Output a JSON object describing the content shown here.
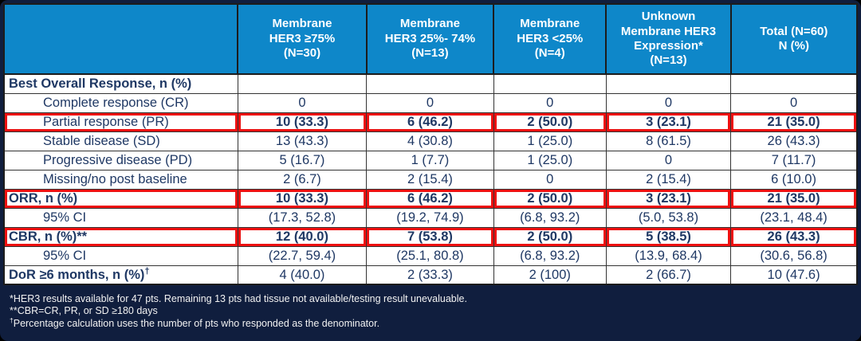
{
  "colors": {
    "bg_navy": "#101E3E",
    "header_blue": "#0E87C9",
    "text_navy": "#1F3864",
    "highlight_red": "#EE1111",
    "border_dark": "#1c1c1c"
  },
  "table": {
    "columns": [
      {
        "name": "column-header-row-label",
        "label": ""
      },
      {
        "name": "column-header-her3-ge75",
        "label": "Membrane\nHER3 ≥75%\n(N=30)"
      },
      {
        "name": "column-header-her3-25-74",
        "label": "Membrane\nHER3 25%- 74%\n(N=13)"
      },
      {
        "name": "column-header-her3-lt25",
        "label": "Membrane\nHER3 <25%\n(N=4)"
      },
      {
        "name": "column-header-unknown",
        "label": "Unknown\nMembrane HER3\nExpression*\n(N=13)"
      },
      {
        "name": "column-header-total",
        "label": "Total (N=60)\nN (%)"
      }
    ],
    "rows": [
      {
        "label": "Best Overall Response, n (%)",
        "label_sup": "",
        "indent": false,
        "bold_label": true,
        "bold_values": false,
        "highlight": false,
        "values": [
          "",
          "",
          "",
          "",
          ""
        ]
      },
      {
        "label": "Complete response (CR)",
        "label_sup": "",
        "indent": true,
        "bold_label": false,
        "bold_values": false,
        "highlight": false,
        "values": [
          "0",
          "0",
          "0",
          "0",
          "0"
        ]
      },
      {
        "label": "Partial response (PR)",
        "label_sup": "",
        "indent": true,
        "bold_label": false,
        "bold_values": true,
        "highlight": true,
        "values": [
          "10 (33.3)",
          "6 (46.2)",
          "2 (50.0)",
          "3 (23.1)",
          "21 (35.0)"
        ]
      },
      {
        "label": "Stable disease (SD)",
        "label_sup": "",
        "indent": true,
        "bold_label": false,
        "bold_values": false,
        "highlight": false,
        "values": [
          "13 (43.3)",
          "4 (30.8)",
          "1 (25.0)",
          "8 (61.5)",
          "26 (43.3)"
        ]
      },
      {
        "label": "Progressive disease (PD)",
        "label_sup": "",
        "indent": true,
        "bold_label": false,
        "bold_values": false,
        "highlight": false,
        "values": [
          "5 (16.7)",
          "1 (7.7)",
          "1 (25.0)",
          "0",
          "7 (11.7)"
        ]
      },
      {
        "label": "Missing/no post baseline",
        "label_sup": "",
        "indent": true,
        "bold_label": false,
        "bold_values": false,
        "highlight": false,
        "values": [
          "2 (6.7)",
          "2 (15.4)",
          "0",
          "2 (15.4)",
          "6 (10.0)"
        ]
      },
      {
        "label": "ORR, n (%)",
        "label_sup": "",
        "indent": false,
        "bold_label": true,
        "bold_values": true,
        "highlight": true,
        "values": [
          "10 (33.3)",
          "6 (46.2)",
          "2 (50.0)",
          "3 (23.1)",
          "21 (35.0)"
        ]
      },
      {
        "label": "95% CI",
        "label_sup": "",
        "indent": true,
        "bold_label": false,
        "bold_values": false,
        "highlight": false,
        "values": [
          "(17.3, 52.8)",
          "(19.2, 74.9)",
          "(6.8, 93.2)",
          "(5.0, 53.8)",
          "(23.1, 48.4)"
        ]
      },
      {
        "label": "CBR, n (%)**",
        "label_sup": "",
        "indent": false,
        "bold_label": true,
        "bold_values": true,
        "highlight": true,
        "values": [
          "12 (40.0)",
          "7 (53.8)",
          "2 (50.0)",
          "5 (38.5)",
          "26 (43.3)"
        ]
      },
      {
        "label": "95% CI",
        "label_sup": "",
        "indent": true,
        "bold_label": false,
        "bold_values": false,
        "highlight": false,
        "values": [
          "(22.7, 59.4)",
          "(25.1, 80.8)",
          "(6.8, 93.2)",
          "(13.9, 68.4)",
          "(30.6, 56.8)"
        ]
      },
      {
        "label": "DoR ≥6 months, n (%)",
        "label_sup": "†",
        "indent": false,
        "bold_label": true,
        "bold_values": false,
        "highlight": false,
        "values": [
          "4 (40.0)",
          "2 (33.3)",
          "2 (100)",
          "2 (66.7)",
          "10 (47.6)"
        ]
      }
    ]
  },
  "footnotes": [
    {
      "sup": "",
      "text": "*HER3 results available for 47 pts. Remaining 13 pts had tissue not available/testing result unevaluable."
    },
    {
      "sup": "",
      "text": "**CBR=CR, PR, or SD ≥180 days"
    },
    {
      "sup": "†",
      "text": "Percentage calculation uses the number of pts who responded as the denominator."
    }
  ]
}
